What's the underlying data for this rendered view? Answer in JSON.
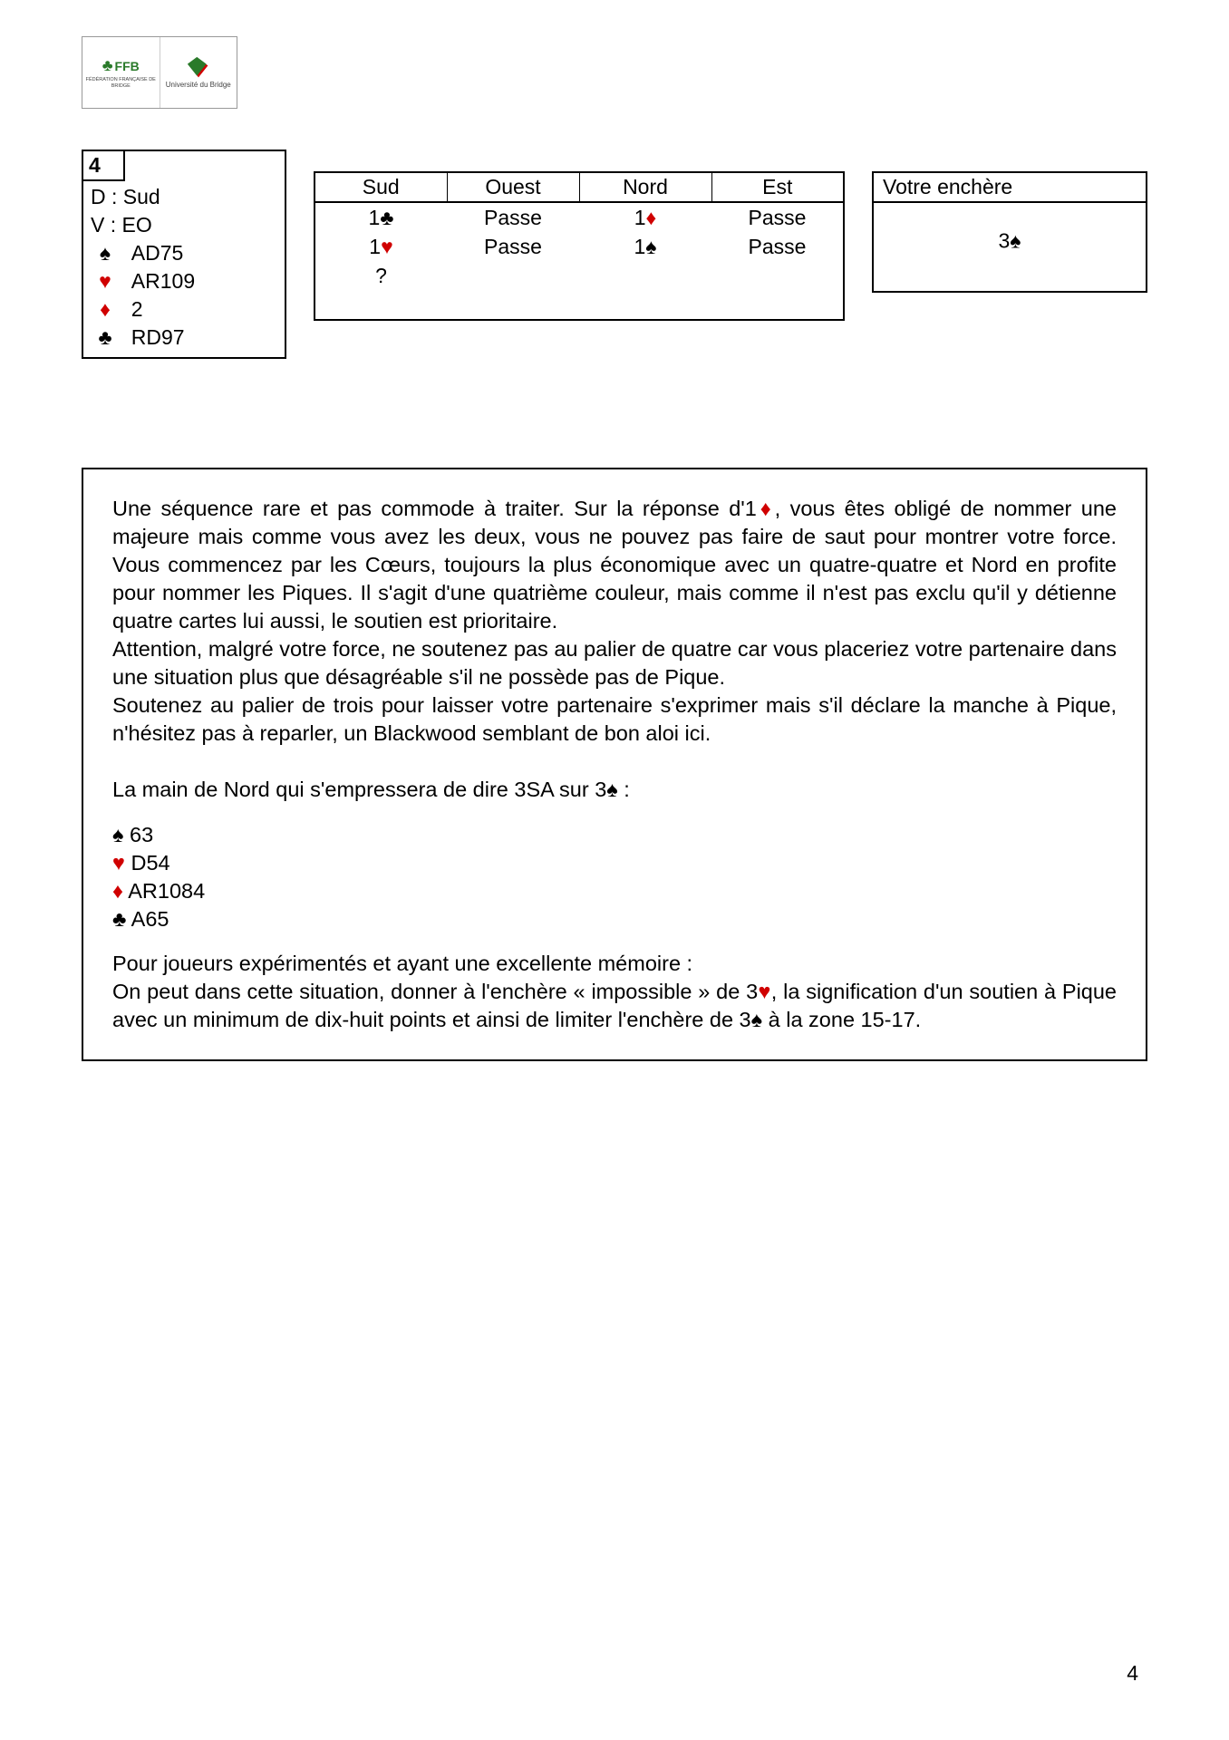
{
  "logo": {
    "ffb": "FFB",
    "ffb_sub": "FÉDÉRATION FRANÇAISE DE BRIDGE",
    "univ": "Université du Bridge"
  },
  "suits": {
    "spade": "♠",
    "heart": "♥",
    "diamond": "♦",
    "club": "♣"
  },
  "colors": {
    "black": "#000000",
    "red": "#d00000"
  },
  "deal": {
    "number": "4",
    "dealer_label": "D :",
    "dealer": "Sud",
    "vuln_label": "V :",
    "vuln": "EO",
    "hand": {
      "spades": "AD75",
      "hearts": "AR109",
      "diamonds": "2",
      "clubs": "RD97"
    }
  },
  "bidding": {
    "headers": [
      "Sud",
      "Ouest",
      "Nord",
      "Est"
    ],
    "rows": [
      [
        {
          "t": "1",
          "s": "club"
        },
        {
          "t": "Passe"
        },
        {
          "t": "1",
          "s": "diamond"
        },
        {
          "t": "Passe"
        }
      ],
      [
        {
          "t": "1",
          "s": "heart"
        },
        {
          "t": "Passe"
        },
        {
          "t": "1",
          "s": "spade"
        },
        {
          "t": "Passe"
        }
      ],
      [
        {
          "t": "?"
        },
        {
          "t": ""
        },
        {
          "t": ""
        },
        {
          "t": ""
        }
      ],
      [
        {
          "t": ""
        },
        {
          "t": ""
        },
        {
          "t": ""
        },
        {
          "t": ""
        }
      ]
    ]
  },
  "answer": {
    "title": "Votre enchère",
    "bid_text": "3",
    "bid_suit": "spade"
  },
  "explanation": {
    "p1a": "Une séquence rare et pas commode à traiter. Sur la réponse d'1",
    "p1b": ", vous êtes obligé de nommer une majeure mais comme vous avez les deux, vous ne pouvez pas faire de saut pour montrer votre force. Vous commencez par les Cœurs, toujours la plus économique avec un quatre-quatre et Nord en profite pour nommer les Piques. Il s'agit d'une quatrième couleur, mais comme il n'est pas exclu qu'il y détienne quatre cartes lui aussi, le soutien est prioritaire.",
    "p2": "Attention, malgré votre force, ne soutenez pas au palier de quatre car vous placeriez votre partenaire dans une situation plus que désagréable s'il ne possède pas de Pique.",
    "p3": "Soutenez au palier de trois pour laisser votre partenaire s'exprimer mais s'il déclare la manche à Pique, n'hésitez pas à reparler, un Blackwood semblant de bon aloi ici.",
    "north_intro_a": "La main de Nord qui s'empressera de dire 3SA sur 3",
    "north_intro_b": " :",
    "north": {
      "spades": "63",
      "hearts": "D54",
      "diamonds": "AR1084",
      "clubs": "A65"
    },
    "p4": "Pour joueurs expérimentés et ayant une excellente mémoire :",
    "p5a": "On peut dans cette situation, donner à l'enchère « impossible » de 3",
    "p5b": ", la signification d'un soutien à Pique avec un minimum de dix-huit points et ainsi de limiter l'enchère de 3",
    "p5c": " à la zone 15-17."
  },
  "page_number": "4"
}
